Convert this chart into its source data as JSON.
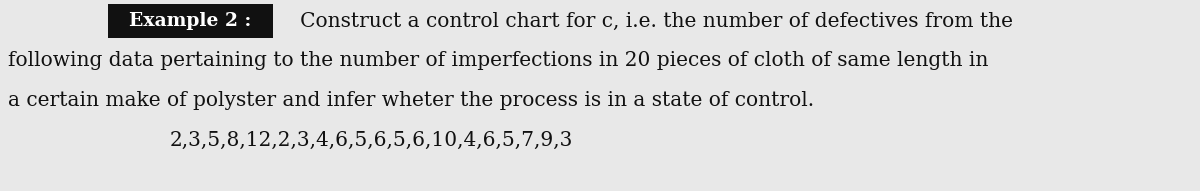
{
  "background_color": "#e8e8e8",
  "label_text": "Example 2 :",
  "label_bg": "#111111",
  "label_text_color": "#ffffff",
  "line1_suffix": "   Construct a control chart for c, i.e. the number of defectives from the",
  "line2_text": "following data pertaining to the number of imperfections in 20 pieces of cloth of same length in",
  "line3_text": "a certain make of polyster and infer wheter the process is in a state of control.",
  "line4_text": "2,3,5,8,12,2,3,4,6,5,6,5,6,10,4,6,5,7,9,3",
  "font_size": 14.5,
  "label_font_size": 13.5,
  "text_color": "#111111",
  "font_family": "DejaVu Serif"
}
